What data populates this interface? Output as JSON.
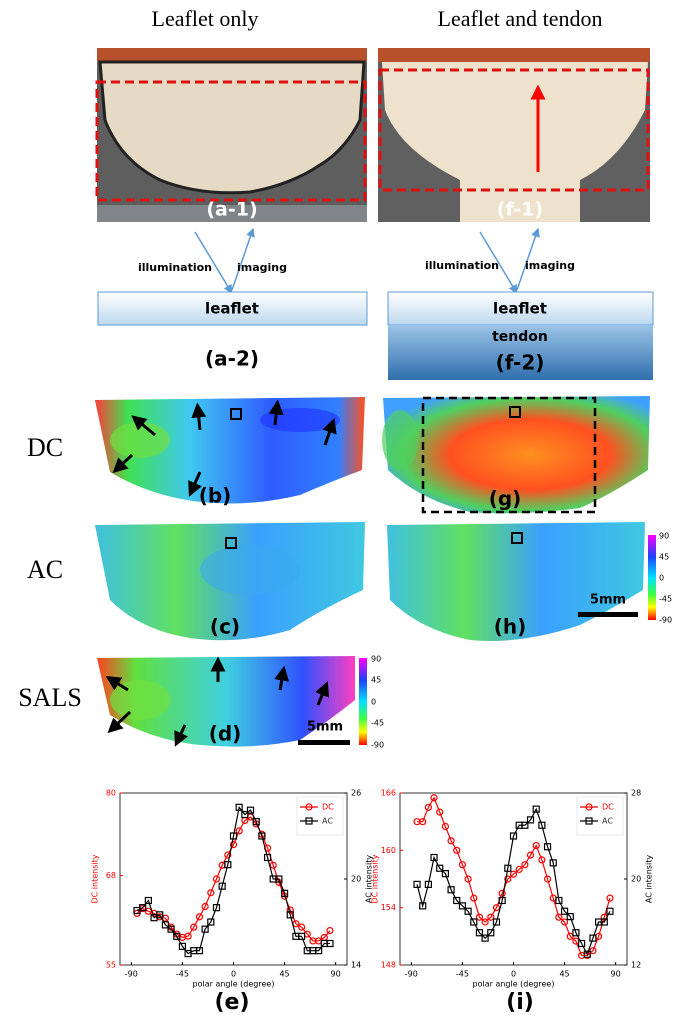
{
  "header": {
    "left_title": "Leaflet only",
    "right_title": "Leaflet and tendon"
  },
  "panels": {
    "a1": "(a-1)",
    "f1": "(f-1)",
    "a2": "(a-2)",
    "f2": "(f-2)",
    "b": "(b)",
    "c": "(c)",
    "d": "(d)",
    "g": "(g)",
    "h": "(h)",
    "e": "(e)",
    "i": "(i)"
  },
  "schematic": {
    "left": {
      "illumination": "illumination",
      "imaging": "imaging",
      "layer": "leaflet"
    },
    "right": {
      "illumination": "illumination",
      "imaging": "imaging",
      "layer": "leaflet",
      "lower_layer": "tendon"
    }
  },
  "row_labels": [
    "DC",
    "AC",
    "SALS"
  ],
  "colorbars": [
    {
      "ticks": [
        90,
        45,
        0,
        -45,
        -90
      ],
      "scale_bar": "5mm"
    },
    {
      "ticks": [
        90,
        45,
        0,
        -45,
        -90
      ],
      "scale_bar": "5mm"
    }
  ],
  "chart_data": [
    {
      "type": "line",
      "xlabel": "polar angle (degree)",
      "ylabel": "DC intensity",
      "y2label": "AC intensity",
      "x": [
        -85,
        -80,
        -75,
        -70,
        -65,
        -60,
        -55,
        -50,
        -45,
        -40,
        -35,
        -30,
        -25,
        -20,
        -15,
        -10,
        -5,
        0,
        5,
        10,
        15,
        20,
        25,
        30,
        35,
        40,
        45,
        50,
        55,
        60,
        65,
        70,
        75,
        80,
        85
      ],
      "xlim": [
        -100,
        100
      ],
      "xticks": [
        -90,
        -45,
        0,
        45,
        90
      ],
      "ylim": [
        55,
        80
      ],
      "yticks": [
        55,
        68,
        80
      ],
      "y2lim": [
        14,
        26
      ],
      "y2ticks": [
        14,
        20,
        26
      ],
      "legend": "upper right",
      "series": [
        {
          "name": "DC",
          "color": "#ff0000",
          "marker": "circle",
          "axis": "y",
          "values": [
            62.5,
            63.2,
            62.8,
            62.5,
            62,
            61.8,
            60.5,
            59.5,
            59,
            59.2,
            60.5,
            62,
            63.5,
            65.5,
            67.5,
            69.5,
            71,
            72.5,
            74.5,
            76,
            76.5,
            75.5,
            74,
            72,
            69.5,
            67,
            65,
            63,
            61,
            60.5,
            59.5,
            58.5,
            58.5,
            59,
            60
          ]
        },
        {
          "name": "AC",
          "color": "#000000",
          "marker": "square",
          "axis": "y2",
          "values": [
            17.8,
            18,
            18.5,
            17.3,
            17.5,
            16.8,
            16.5,
            16,
            15.3,
            14.8,
            15,
            15,
            16.5,
            17,
            18,
            19.5,
            21,
            23,
            25,
            24.5,
            24.8,
            24,
            23,
            21.5,
            20,
            20,
            19,
            17.5,
            16,
            16,
            15,
            15,
            15,
            15.5,
            15.5
          ]
        }
      ]
    },
    {
      "type": "line",
      "xlabel": "polar angle (degree)",
      "ylabel": "DC intensity",
      "y2label": "AC intensity",
      "x": [
        -85,
        -80,
        -75,
        -70,
        -65,
        -60,
        -55,
        -50,
        -45,
        -40,
        -35,
        -30,
        -25,
        -20,
        -15,
        -10,
        -5,
        0,
        5,
        10,
        15,
        20,
        25,
        30,
        35,
        40,
        45,
        50,
        55,
        60,
        65,
        70,
        75,
        80,
        85
      ],
      "xlim": [
        -100,
        100
      ],
      "xticks": [
        -90,
        -45,
        0,
        45,
        90
      ],
      "ylim": [
        148,
        166
      ],
      "yticks": [
        148,
        154,
        160,
        166
      ],
      "y2lim": [
        12,
        28
      ],
      "y2ticks": [
        12,
        20,
        28
      ],
      "legend": "upper right",
      "series": [
        {
          "name": "DC",
          "color": "#ff0000",
          "marker": "circle",
          "axis": "y",
          "values": [
            163,
            163,
            164.5,
            165.5,
            164,
            162.5,
            161,
            160,
            158.5,
            157,
            155,
            153,
            152.5,
            153,
            154,
            155.5,
            157,
            157.5,
            158,
            158.5,
            159.5,
            160.5,
            159,
            157,
            155,
            153,
            152.5,
            151,
            150.5,
            149,
            149,
            149.5,
            151,
            153,
            155
          ]
        },
        {
          "name": "AC",
          "color": "#000000",
          "marker": "square",
          "axis": "y2",
          "values": [
            19.5,
            17.5,
            19.5,
            22,
            21,
            20.5,
            19,
            18,
            17.5,
            17,
            16,
            15,
            14.5,
            15,
            16,
            18,
            21,
            24,
            25,
            25,
            25.5,
            26.5,
            25,
            23,
            21.5,
            18,
            17,
            16.5,
            15,
            14,
            13,
            14.5,
            16,
            16,
            17
          ]
        }
      ]
    }
  ]
}
